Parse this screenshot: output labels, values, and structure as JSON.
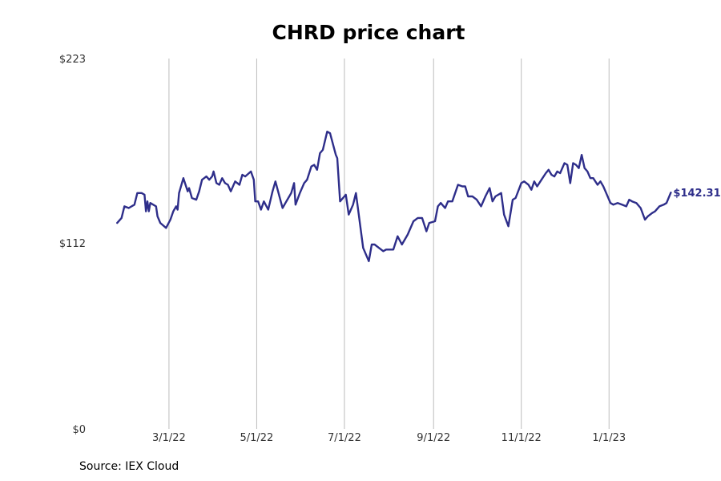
{
  "chart_data": {
    "type": "line",
    "title": "CHRD price chart",
    "source": "Source: IEX Cloud",
    "xlabel": "",
    "ylabel": "",
    "x_ticks": [
      "3/1/22",
      "5/1/22",
      "7/1/22",
      "9/1/22",
      "11/1/22",
      "1/1/23"
    ],
    "y_ticks": [
      "$0",
      "$112",
      "$223"
    ],
    "ylim": [
      0,
      223
    ],
    "xlim": [
      "2022-01-01",
      "2023-02-20"
    ],
    "grid": "vertical",
    "line_color": "#2e2e8a",
    "last_value_label": "$142.31",
    "series": [
      {
        "points": [
          [
            "2022-01-24",
            124
          ],
          [
            "2022-01-27",
            127
          ],
          [
            "2022-01-29",
            134
          ],
          [
            "2022-02-01",
            133
          ],
          [
            "2022-02-05",
            135
          ],
          [
            "2022-02-07",
            142
          ],
          [
            "2022-02-10",
            142
          ],
          [
            "2022-02-12",
            141
          ],
          [
            "2022-02-13",
            131
          ],
          [
            "2022-02-14",
            137
          ],
          [
            "2022-02-15",
            131
          ],
          [
            "2022-02-16",
            136
          ],
          [
            "2022-02-20",
            134
          ],
          [
            "2022-02-21",
            128
          ],
          [
            "2022-02-23",
            124
          ],
          [
            "2022-02-27",
            121
          ],
          [
            "2022-03-02",
            126
          ],
          [
            "2022-03-04",
            131
          ],
          [
            "2022-03-06",
            134
          ],
          [
            "2022-03-07",
            132
          ],
          [
            "2022-03-08",
            142
          ],
          [
            "2022-03-11",
            151
          ],
          [
            "2022-03-14",
            143
          ],
          [
            "2022-03-15",
            145
          ],
          [
            "2022-03-17",
            139
          ],
          [
            "2022-03-20",
            138
          ],
          [
            "2022-03-22",
            143
          ],
          [
            "2022-03-24",
            150
          ],
          [
            "2022-03-27",
            152
          ],
          [
            "2022-03-29",
            150
          ],
          [
            "2022-03-31",
            152
          ],
          [
            "2022-04-01",
            155
          ],
          [
            "2022-04-03",
            148
          ],
          [
            "2022-04-05",
            147
          ],
          [
            "2022-04-07",
            151
          ],
          [
            "2022-04-09",
            148
          ],
          [
            "2022-04-11",
            147
          ],
          [
            "2022-04-13",
            143
          ],
          [
            "2022-04-16",
            149
          ],
          [
            "2022-04-19",
            147
          ],
          [
            "2022-04-21",
            153
          ],
          [
            "2022-04-23",
            152
          ],
          [
            "2022-04-27",
            155
          ],
          [
            "2022-04-29",
            150
          ],
          [
            "2022-04-30",
            137
          ],
          [
            "2022-05-02",
            137
          ],
          [
            "2022-05-04",
            132
          ],
          [
            "2022-05-06",
            137
          ],
          [
            "2022-05-09",
            132
          ],
          [
            "2022-05-12",
            143
          ],
          [
            "2022-05-14",
            149
          ],
          [
            "2022-05-19",
            133
          ],
          [
            "2022-05-21",
            136
          ],
          [
            "2022-05-23",
            139
          ],
          [
            "2022-05-25",
            142
          ],
          [
            "2022-05-27",
            148
          ],
          [
            "2022-05-28",
            135
          ],
          [
            "2022-05-31",
            142
          ],
          [
            "2022-06-03",
            148
          ],
          [
            "2022-06-05",
            150
          ],
          [
            "2022-06-08",
            158
          ],
          [
            "2022-06-10",
            159
          ],
          [
            "2022-06-12",
            156
          ],
          [
            "2022-06-14",
            166
          ],
          [
            "2022-06-16",
            168
          ],
          [
            "2022-06-19",
            179
          ],
          [
            "2022-06-21",
            178
          ],
          [
            "2022-06-25",
            165
          ],
          [
            "2022-06-26",
            163
          ],
          [
            "2022-06-28",
            137
          ],
          [
            "2022-06-30",
            139
          ],
          [
            "2022-07-02",
            141
          ],
          [
            "2022-07-04",
            129
          ],
          [
            "2022-07-07",
            135
          ],
          [
            "2022-07-09",
            142
          ],
          [
            "2022-07-14",
            109
          ],
          [
            "2022-07-18",
            101
          ],
          [
            "2022-07-20",
            111
          ],
          [
            "2022-07-22",
            111
          ],
          [
            "2022-07-25",
            109
          ],
          [
            "2022-07-28",
            107
          ],
          [
            "2022-07-30",
            108
          ],
          [
            "2022-08-04",
            108
          ],
          [
            "2022-08-07",
            116
          ],
          [
            "2022-08-10",
            111
          ],
          [
            "2022-08-14",
            117
          ],
          [
            "2022-08-18",
            125
          ],
          [
            "2022-08-21",
            127
          ],
          [
            "2022-08-24",
            127
          ],
          [
            "2022-08-27",
            119
          ],
          [
            "2022-08-29",
            124
          ],
          [
            "2022-09-02",
            125
          ],
          [
            "2022-09-04",
            134
          ],
          [
            "2022-09-06",
            136
          ],
          [
            "2022-09-09",
            133
          ],
          [
            "2022-09-11",
            137
          ],
          [
            "2022-09-14",
            137
          ],
          [
            "2022-09-18",
            147
          ],
          [
            "2022-09-21",
            146
          ],
          [
            "2022-09-23",
            146
          ],
          [
            "2022-09-25",
            140
          ],
          [
            "2022-09-28",
            140
          ],
          [
            "2022-10-01",
            138
          ],
          [
            "2022-10-04",
            134
          ],
          [
            "2022-10-07",
            140
          ],
          [
            "2022-10-10",
            145
          ],
          [
            "2022-10-12",
            137
          ],
          [
            "2022-10-14",
            140
          ],
          [
            "2022-10-18",
            142
          ],
          [
            "2022-10-20",
            129
          ],
          [
            "2022-10-23",
            122
          ],
          [
            "2022-10-26",
            138
          ],
          [
            "2022-10-28",
            139
          ],
          [
            "2022-11-01",
            148
          ],
          [
            "2022-11-03",
            149
          ],
          [
            "2022-11-06",
            147
          ],
          [
            "2022-11-08",
            144
          ],
          [
            "2022-11-10",
            149
          ],
          [
            "2022-11-12",
            146
          ],
          [
            "2022-11-15",
            150
          ],
          [
            "2022-11-18",
            154
          ],
          [
            "2022-11-20",
            156
          ],
          [
            "2022-11-22",
            153
          ],
          [
            "2022-11-24",
            152
          ],
          [
            "2022-11-26",
            155
          ],
          [
            "2022-11-28",
            154
          ],
          [
            "2022-12-01",
            160
          ],
          [
            "2022-12-03",
            159
          ],
          [
            "2022-12-05",
            148
          ],
          [
            "2022-12-07",
            160
          ],
          [
            "2022-12-09",
            159
          ],
          [
            "2022-12-11",
            157
          ],
          [
            "2022-12-13",
            165
          ],
          [
            "2022-12-15",
            157
          ],
          [
            "2022-12-17",
            155
          ],
          [
            "2022-12-19",
            151
          ],
          [
            "2022-12-21",
            151
          ],
          [
            "2022-12-24",
            147
          ],
          [
            "2022-12-26",
            149
          ],
          [
            "2022-12-28",
            146
          ],
          [
            "2022-12-30",
            142
          ],
          [
            "2023-01-02",
            136
          ],
          [
            "2023-01-04",
            135
          ],
          [
            "2023-01-07",
            136
          ],
          [
            "2023-01-10",
            135
          ],
          [
            "2023-01-13",
            134
          ],
          [
            "2023-01-15",
            138
          ],
          [
            "2023-01-17",
            137
          ],
          [
            "2023-01-20",
            136
          ],
          [
            "2023-01-23",
            133
          ],
          [
            "2023-01-26",
            126
          ],
          [
            "2023-01-28",
            128
          ],
          [
            "2023-01-31",
            130
          ],
          [
            "2023-02-02",
            131
          ],
          [
            "2023-02-05",
            134
          ],
          [
            "2023-02-08",
            135
          ],
          [
            "2023-02-10",
            136
          ],
          [
            "2023-02-13",
            142.31
          ]
        ]
      }
    ]
  }
}
